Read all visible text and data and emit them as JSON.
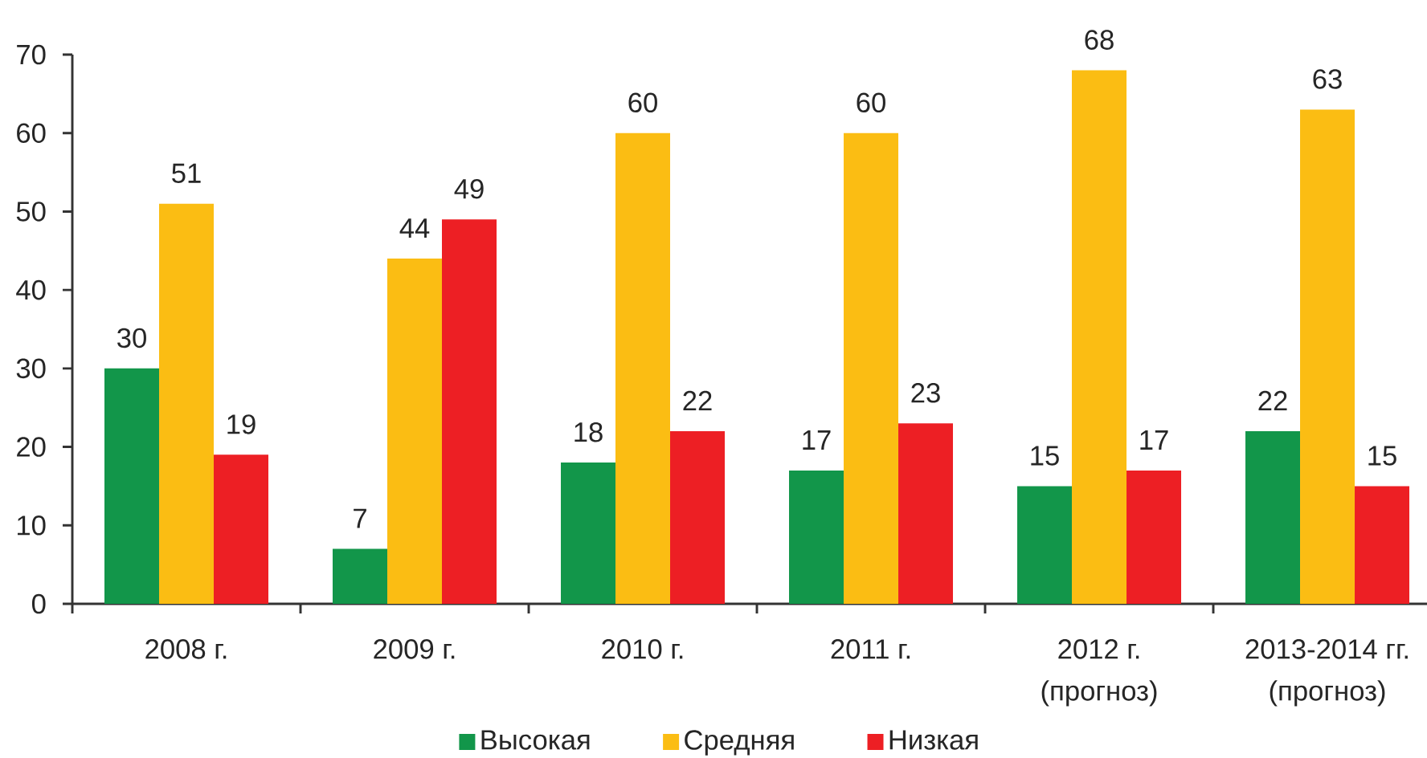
{
  "chart_data": {
    "type": "bar",
    "categories": [
      "2008 г.",
      "2009 г.",
      "2010 г.",
      "2011 г.",
      "2012 г.\n(прогноз)",
      "2013-2014 гг.\n(прогноз)"
    ],
    "series": [
      {
        "name": "Высокая",
        "color": "#12964a",
        "values": [
          30,
          7,
          18,
          17,
          15,
          22
        ]
      },
      {
        "name": "Средняя",
        "color": "#fbbd13",
        "values": [
          51,
          44,
          60,
          60,
          68,
          63
        ]
      },
      {
        "name": "Низкая",
        "color": "#ed1f24",
        "values": [
          19,
          49,
          22,
          23,
          17,
          15
        ]
      }
    ],
    "ylim": [
      0,
      70
    ],
    "yticks": [
      0,
      10,
      20,
      30,
      40,
      50,
      60,
      70
    ],
    "data_labels": true,
    "legend": "bottom"
  }
}
